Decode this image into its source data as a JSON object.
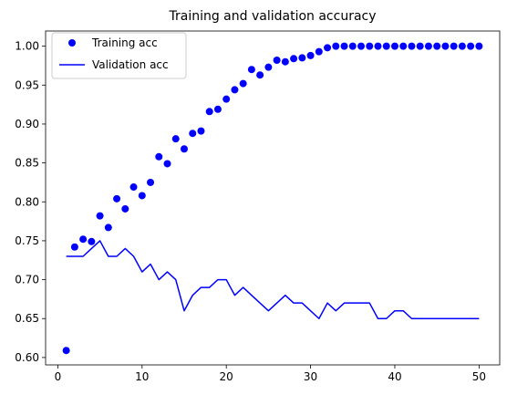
{
  "chart_data": {
    "type": "line",
    "title": "Training and validation accuracy",
    "xlabel": "",
    "ylabel": "",
    "xlim": [
      -1.45,
      52.45
    ],
    "ylim": [
      0.5905,
      1.0195
    ],
    "xticks": [
      0,
      10,
      20,
      30,
      40,
      50
    ],
    "xtick_labels": [
      "0",
      "10",
      "20",
      "30",
      "40",
      "50"
    ],
    "yticks": [
      0.6,
      0.65,
      0.7,
      0.75,
      0.8,
      0.85,
      0.9,
      0.95,
      1.0
    ],
    "ytick_labels": [
      "0.60",
      "0.65",
      "0.70",
      "0.75",
      "0.80",
      "0.85",
      "0.90",
      "0.95",
      "1.00"
    ],
    "grid": false,
    "legend_position": "upper-left",
    "x": [
      1,
      2,
      3,
      4,
      5,
      6,
      7,
      8,
      9,
      10,
      11,
      12,
      13,
      14,
      15,
      16,
      17,
      18,
      19,
      20,
      21,
      22,
      23,
      24,
      25,
      26,
      27,
      28,
      29,
      30,
      31,
      32,
      33,
      34,
      35,
      36,
      37,
      38,
      39,
      40,
      41,
      42,
      43,
      44,
      45,
      46,
      47,
      48,
      49,
      50
    ],
    "series": [
      {
        "name": "Training acc",
        "style": "markers",
        "color": "#0000ff",
        "values": [
          0.609,
          0.742,
          0.752,
          0.749,
          0.782,
          0.767,
          0.804,
          0.791,
          0.819,
          0.808,
          0.825,
          0.858,
          0.849,
          0.881,
          0.868,
          0.888,
          0.891,
          0.916,
          0.919,
          0.932,
          0.944,
          0.952,
          0.97,
          0.963,
          0.973,
          0.982,
          0.98,
          0.984,
          0.985,
          0.988,
          0.993,
          0.998,
          1.0,
          1.0,
          1.0,
          1.0,
          1.0,
          1.0,
          1.0,
          1.0,
          1.0,
          1.0,
          1.0,
          1.0,
          1.0,
          1.0,
          1.0,
          1.0,
          1.0,
          1.0
        ]
      },
      {
        "name": "Validation acc",
        "style": "line",
        "color": "#0000ff",
        "values": [
          0.73,
          0.73,
          0.73,
          0.74,
          0.75,
          0.73,
          0.73,
          0.74,
          0.73,
          0.71,
          0.72,
          0.7,
          0.71,
          0.7,
          0.66,
          0.68,
          0.69,
          0.69,
          0.7,
          0.7,
          0.68,
          0.69,
          0.68,
          0.67,
          0.66,
          0.67,
          0.68,
          0.67,
          0.67,
          0.66,
          0.65,
          0.67,
          0.66,
          0.67,
          0.67,
          0.67,
          0.67,
          0.65,
          0.65,
          0.66,
          0.66,
          0.65,
          0.65,
          0.65,
          0.65,
          0.65,
          0.65,
          0.65,
          0.65,
          0.65
        ]
      }
    ]
  }
}
